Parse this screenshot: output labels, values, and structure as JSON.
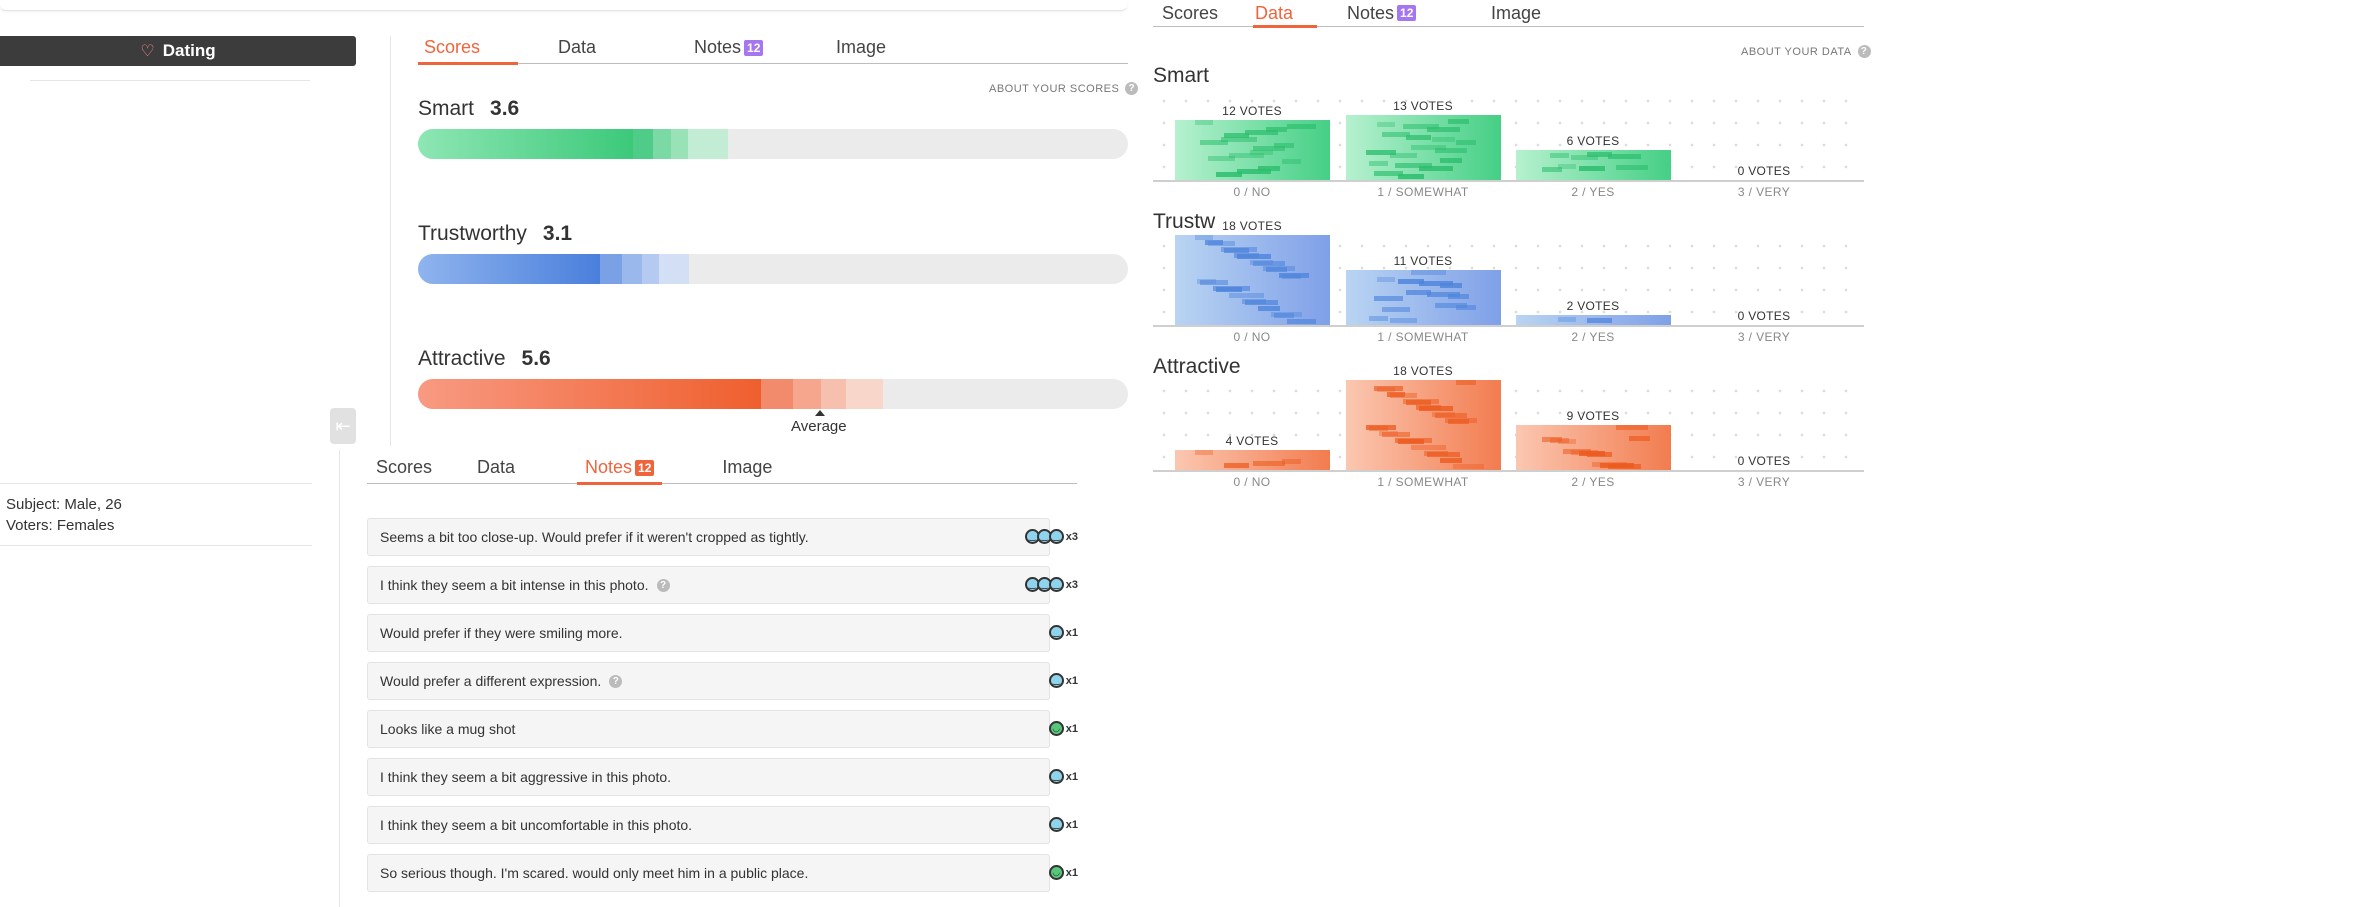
{
  "sidebar": {
    "dating_label": "Dating",
    "subject": "Subject: Male, 26",
    "voters": "Voters: Females"
  },
  "icons": {
    "heart": "heart-icon",
    "help": "question-icon",
    "collapse": "collapse-arrow-icon",
    "face_neutral": "neutral-face-icon",
    "face_happy": "happy-face-icon"
  },
  "colors": {
    "accent": "#f0643c",
    "badge": "#a675f0",
    "smart": "#3ccc7a",
    "trustworthy": "#5b8fe0",
    "attractive": "#f0643c"
  },
  "scores_panel": {
    "tabs": [
      {
        "label": "Scores",
        "active": true
      },
      {
        "label": "Data"
      },
      {
        "label": "Notes",
        "badge": "12"
      },
      {
        "label": "Image"
      }
    ],
    "about": "ABOUT YOUR SCORES",
    "help": "?",
    "traits": [
      {
        "name": "Smart",
        "score": "3.6",
        "fill": 0.36
      },
      {
        "name": "Trustworthy",
        "score": "3.1",
        "fill": 0.31
      },
      {
        "name": "Attractive",
        "score": "5.6",
        "fill": 0.56
      }
    ],
    "average_label": "Average"
  },
  "notes_panel": {
    "tabs": [
      {
        "label": "Scores"
      },
      {
        "label": "Data"
      },
      {
        "label": "Notes",
        "badge": "12",
        "active": true
      },
      {
        "label": "Image"
      }
    ],
    "notes": [
      {
        "text": "Seems a bit too close-up. Would prefer if it weren't cropped as tightly.",
        "count": "x3",
        "faces": 3,
        "mood": "neutral",
        "help": false
      },
      {
        "text": "I think they seem a bit intense in this photo.",
        "count": "x3",
        "faces": 3,
        "mood": "neutral",
        "help": true
      },
      {
        "text": "Would prefer if they were smiling more.",
        "count": "x1",
        "faces": 1,
        "mood": "neutral",
        "help": false
      },
      {
        "text": "Would prefer a different expression.",
        "count": "x1",
        "faces": 1,
        "mood": "neutral",
        "help": true
      },
      {
        "text": "Looks like a mug shot",
        "count": "x1",
        "faces": 1,
        "mood": "happy",
        "help": false
      },
      {
        "text": "I think they seem a bit aggressive in this photo.",
        "count": "x1",
        "faces": 1,
        "mood": "neutral",
        "help": false
      },
      {
        "text": "I think they seem a bit uncomfortable in this photo.",
        "count": "x1",
        "faces": 1,
        "mood": "neutral",
        "help": false
      },
      {
        "text": "So serious though. I'm scared. would only meet him in a public place.",
        "count": "x1",
        "faces": 1,
        "mood": "happy",
        "help": false
      }
    ],
    "help": "?"
  },
  "data_panel": {
    "tabs": [
      {
        "label": "Scores"
      },
      {
        "label": "Data",
        "active": true
      },
      {
        "label": "Notes",
        "badge": "12"
      },
      {
        "label": "Image"
      }
    ],
    "about": "ABOUT YOUR DATA",
    "help": "?"
  },
  "chart_data": [
    {
      "type": "bar",
      "title": "Smart",
      "categories": [
        "0 / NO",
        "1 / SOMEWHAT",
        "2 / YES",
        "3 / VERY"
      ],
      "values": [
        12,
        13,
        6,
        0
      ],
      "labels": [
        "12 VOTES",
        "13 VOTES",
        "6 VOTES",
        "0 VOTES"
      ]
    },
    {
      "type": "bar",
      "title": "Trustw",
      "categories": [
        "0 / NO",
        "1 / SOMEWHAT",
        "2 / YES",
        "3 / VERY"
      ],
      "values": [
        18,
        11,
        2,
        0
      ],
      "labels": [
        "18 VOTES",
        "11 VOTES",
        "2 VOTES",
        "0 VOTES"
      ]
    },
    {
      "type": "bar",
      "title": "Attractive",
      "categories": [
        "0 / NO",
        "1 / SOMEWHAT",
        "2 / YES",
        "3 / VERY"
      ],
      "values": [
        4,
        18,
        9,
        0
      ],
      "labels": [
        "4 VOTES",
        "18 VOTES",
        "9 VOTES",
        "0 VOTES"
      ]
    }
  ]
}
